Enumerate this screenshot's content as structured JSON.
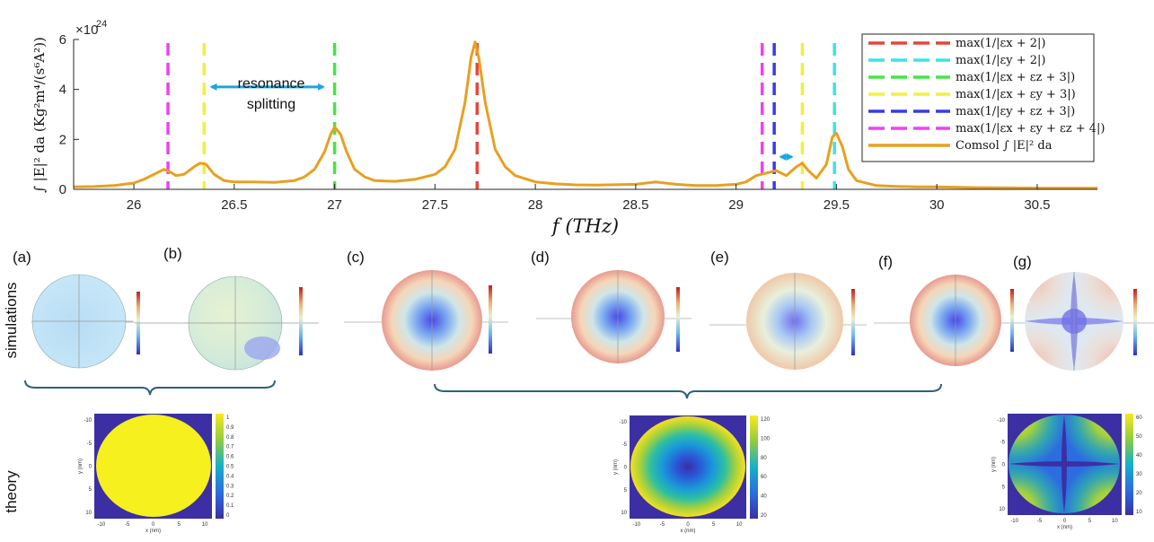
{
  "chart_data": {
    "type": "line",
    "xlabel": "f (THz)",
    "ylabel": "∫ |E|² da (Kg²m⁴/(s⁶A²))",
    "y_exponent_label": "×10",
    "y_exponent": "24",
    "xlim": [
      25.7,
      30.8
    ],
    "ylim": [
      0,
      6
    ],
    "x_ticks": [
      "26",
      "26.5",
      "27",
      "27.5",
      "28",
      "28.5",
      "29",
      "29.5",
      "30",
      "30.5"
    ],
    "x_tick_values": [
      26,
      26.5,
      27,
      27.5,
      28,
      28.5,
      29,
      29.5,
      30,
      30.5
    ],
    "y_ticks": [
      "0",
      "2",
      "4",
      "6"
    ],
    "y_tick_values": [
      0,
      2,
      4,
      6
    ],
    "series": [
      {
        "name": "Comsol ∫ |E|² da",
        "color": "#e8a020",
        "x": [
          25.7,
          25.8,
          25.9,
          26.0,
          26.05,
          26.1,
          26.15,
          26.18,
          26.21,
          26.25,
          26.3,
          26.33,
          26.36,
          26.4,
          26.45,
          26.5,
          26.6,
          26.7,
          26.8,
          26.85,
          26.9,
          26.95,
          26.98,
          27.0,
          27.03,
          27.06,
          27.1,
          27.15,
          27.2,
          27.3,
          27.4,
          27.5,
          27.55,
          27.6,
          27.65,
          27.68,
          27.7,
          27.72,
          27.75,
          27.8,
          27.85,
          27.9,
          28.0,
          28.1,
          28.2,
          28.3,
          28.5,
          28.6,
          28.7,
          28.8,
          28.9,
          29.0,
          29.05,
          29.1,
          29.15,
          29.2,
          29.25,
          29.3,
          29.33,
          29.36,
          29.4,
          29.45,
          29.48,
          29.5,
          29.53,
          29.56,
          29.6,
          29.7,
          29.8,
          29.9,
          30.0,
          30.2,
          30.5,
          30.8
        ],
        "y": [
          0.1,
          0.11,
          0.15,
          0.25,
          0.4,
          0.6,
          0.8,
          0.7,
          0.55,
          0.6,
          0.9,
          1.05,
          1.0,
          0.6,
          0.35,
          0.3,
          0.3,
          0.28,
          0.35,
          0.5,
          0.8,
          1.5,
          2.2,
          2.5,
          2.2,
          1.5,
          0.8,
          0.5,
          0.35,
          0.32,
          0.4,
          0.6,
          0.9,
          1.6,
          3.5,
          5.3,
          5.9,
          5.2,
          3.5,
          1.6,
          0.9,
          0.55,
          0.3,
          0.22,
          0.18,
          0.17,
          0.2,
          0.3,
          0.2,
          0.15,
          0.15,
          0.2,
          0.3,
          0.55,
          0.65,
          0.75,
          0.55,
          0.9,
          1.05,
          0.75,
          0.45,
          1.0,
          2.1,
          2.25,
          1.7,
          0.8,
          0.35,
          0.15,
          0.12,
          0.1,
          0.1,
          0.07,
          0.05,
          0.05
        ]
      }
    ],
    "vlines": [
      {
        "x": 27.71,
        "color": "#e8453c"
      },
      {
        "x": 29.49,
        "color": "#3ee3e3"
      },
      {
        "x": 27.0,
        "color": "#45e645"
      },
      {
        "x": 26.35,
        "x2": 29.33,
        "color": "#f0f040"
      },
      {
        "x": 29.19,
        "color": "#3a3ae6"
      },
      {
        "x": 26.17,
        "x2": 29.13,
        "color": "#f040f0"
      }
    ],
    "legend": [
      {
        "label": "max(1/|εx + 2|)",
        "color": "#e8453c",
        "style": "dashed"
      },
      {
        "label": "max(1/|εy + 2|)",
        "color": "#3ee3e3",
        "style": "dashed"
      },
      {
        "label": "max(1/|εx + εz + 3|)",
        "color": "#45e645",
        "style": "dashed"
      },
      {
        "label": "max(1/|εx + εy + 3|)",
        "color": "#f0f040",
        "style": "dashed"
      },
      {
        "label": "max(1/|εy + εz + 3|)",
        "color": "#3a3ae6",
        "style": "dashed"
      },
      {
        "label": "max(1/|εx + εy + εz + 4|)",
        "color": "#f040f0",
        "style": "dashed"
      },
      {
        "label": "Comsol ∫ |E|² da",
        "color": "#e8a020",
        "style": "solid"
      }
    ],
    "annotations": [
      {
        "text_line1": "resonance",
        "text_line2": "splitting",
        "arrow_from": 26.36,
        "arrow_to": 26.97,
        "arrow_y": 4.1
      },
      {
        "arrow_from": 29.2,
        "arrow_to": 29.3,
        "arrow_y": 1.3
      }
    ]
  },
  "panels": {
    "row_label_simulations": "simulations",
    "row_label_theory": "theory",
    "labels": [
      "(a)",
      "(b)",
      "(c)",
      "(d)",
      "(e)",
      "(f)",
      "(g)"
    ]
  },
  "theory_axes": {
    "x_ticks": [
      "-10",
      "-5",
      "0",
      "5",
      "10"
    ],
    "y_ticks": [
      "-10",
      "-5",
      "0",
      "5",
      "10"
    ],
    "xlabel": "x (nm)",
    "ylabel": "y (nm)",
    "cb1_ticks": [
      "1",
      "0.9",
      "0.8",
      "0.7",
      "0.6",
      "0.5",
      "0.4",
      "0.3",
      "0.2",
      "0.1",
      "0"
    ],
    "cb2_ticks": [
      "120",
      "100",
      "80",
      "60",
      "40",
      "20"
    ],
    "cb3_ticks": [
      "60",
      "50",
      "40",
      "30",
      "20",
      "10"
    ]
  },
  "colors": {
    "arrow": "#1aa6e0",
    "brace": "#2f5f7f",
    "theory_bg": "#3b2fa3",
    "uniform_yellow": "#f5f01e"
  }
}
